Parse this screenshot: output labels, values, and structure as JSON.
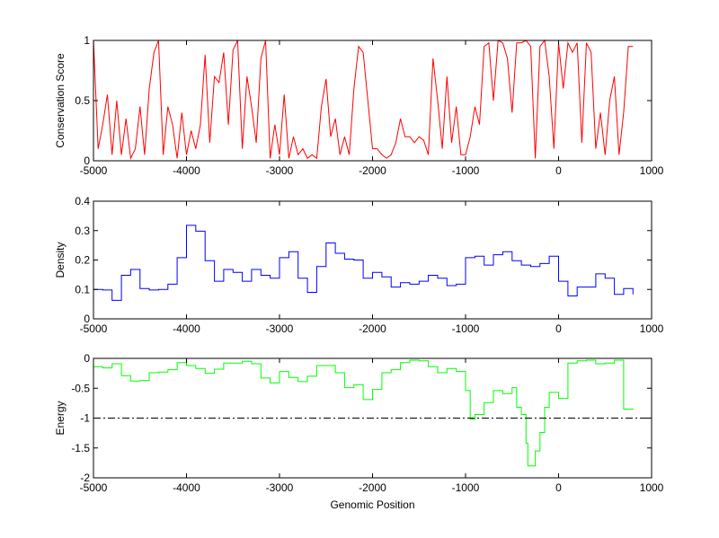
{
  "chart_data": [
    {
      "type": "line",
      "title": "",
      "xlabel": "",
      "ylabel": "Conservation Score",
      "xlim": [
        -5000,
        1000
      ],
      "ylim": [
        0,
        1
      ],
      "xticks": [
        "-5000",
        "-4000",
        "-3000",
        "-2000",
        "-1000",
        "0",
        "1000"
      ],
      "yticks": [
        "0",
        "0.5",
        "1"
      ],
      "ytick_values": [
        0,
        0.5,
        1
      ],
      "color": "#ff0000",
      "step": false,
      "x_start": -5000,
      "x_step": 50,
      "values": [
        1,
        0.1,
        0.3,
        0.55,
        0.05,
        0.5,
        0.05,
        0.35,
        0.02,
        0.1,
        0.45,
        0.05,
        0.6,
        0.9,
        1,
        0.05,
        0.45,
        0.3,
        0.02,
        0.4,
        0.05,
        0.25,
        0.1,
        0.3,
        0.88,
        0.15,
        0.7,
        0.65,
        0.9,
        0.3,
        0.92,
        1,
        0.1,
        0.7,
        0.45,
        0.15,
        0.85,
        1,
        0.02,
        0.3,
        0.05,
        0.55,
        0.02,
        0.2,
        0.05,
        0.1,
        0.02,
        0.05,
        0.02,
        0.45,
        0.68,
        0.2,
        0.35,
        0.05,
        0.2,
        0.05,
        0.6,
        0.95,
        0.9,
        0.5,
        0.1,
        0.1,
        0.05,
        0.02,
        0.05,
        0.15,
        0.35,
        0.2,
        0.2,
        0.15,
        0.2,
        0.17,
        0.05,
        0.85,
        0.5,
        0.1,
        0.7,
        0.15,
        0.45,
        0.05,
        0.05,
        0.2,
        0.45,
        0.3,
        0.95,
        0.98,
        0.5,
        1,
        0.98,
        0.85,
        0.4,
        0.98,
        0.98,
        1,
        0.95,
        0.02,
        0.95,
        1,
        0.7,
        0.1,
        0.98,
        0.6,
        0.98,
        0.9,
        0.98,
        0.15,
        0.98,
        0.9,
        0.1,
        0.4,
        0.05,
        0.5,
        0.7,
        0.05,
        0.4,
        0.95,
        0.95
      ]
    },
    {
      "type": "line",
      "title": "",
      "xlabel": "",
      "ylabel": "Density",
      "xlim": [
        -5000,
        1000
      ],
      "ylim": [
        0,
        0.4
      ],
      "xticks": [
        "-5000",
        "-4000",
        "-3000",
        "-2000",
        "-1000",
        "0",
        "1000"
      ],
      "yticks": [
        "0",
        "0.1",
        "0.2",
        "0.3",
        "0.4"
      ],
      "ytick_values": [
        0,
        0.1,
        0.2,
        0.3,
        0.4
      ],
      "color": "#0000ff",
      "step": true,
      "x_start": -5000,
      "x_step": 100,
      "values": [
        0.1,
        0.098,
        0.063,
        0.148,
        0.168,
        0.103,
        0.098,
        0.1,
        0.118,
        0.208,
        0.318,
        0.298,
        0.198,
        0.128,
        0.168,
        0.158,
        0.128,
        0.168,
        0.148,
        0.138,
        0.208,
        0.228,
        0.138,
        0.09,
        0.178,
        0.258,
        0.223,
        0.203,
        0.2,
        0.138,
        0.158,
        0.143,
        0.108,
        0.123,
        0.118,
        0.128,
        0.148,
        0.138,
        0.113,
        0.118,
        0.208,
        0.213,
        0.183,
        0.218,
        0.228,
        0.198,
        0.183,
        0.178,
        0.188,
        0.213,
        0.128,
        0.078,
        0.108,
        0.108,
        0.153,
        0.138,
        0.083,
        0.103,
        0.083
      ]
    },
    {
      "type": "line",
      "title": "",
      "xlabel": "Genomic Position",
      "ylabel": "Energy",
      "xlim": [
        -5000,
        1000
      ],
      "ylim": [
        -2,
        0
      ],
      "xticks": [
        "-5000",
        "-4000",
        "-3000",
        "-2000",
        "-1000",
        "0",
        "1000"
      ],
      "yticks": [
        "0",
        "-0.5",
        "-1",
        "-1.5",
        "-2"
      ],
      "ytick_values": [
        0,
        -0.5,
        -1,
        -1.5,
        -2
      ],
      "color": "#00ff00",
      "step": true,
      "threshold": -1,
      "x": [
        -5000,
        -4900,
        -4800,
        -4700,
        -4600,
        -4500,
        -4400,
        -4300,
        -4200,
        -4100,
        -4000,
        -3900,
        -3800,
        -3700,
        -3600,
        -3500,
        -3400,
        -3300,
        -3200,
        -3100,
        -3000,
        -2900,
        -2800,
        -2700,
        -2600,
        -2500,
        -2400,
        -2300,
        -2200,
        -2100,
        -2000,
        -1900,
        -1800,
        -1700,
        -1600,
        -1500,
        -1400,
        -1300,
        -1200,
        -1100,
        -1000,
        -950,
        -900,
        -800,
        -700,
        -600,
        -500,
        -450,
        -400,
        -350,
        -330,
        -250,
        -200,
        -150,
        -100,
        0,
        100,
        200,
        300,
        400,
        500,
        600,
        700,
        800
      ],
      "values": [
        -0.14,
        -0.16,
        -0.09,
        -0.29,
        -0.38,
        -0.37,
        -0.24,
        -0.23,
        -0.19,
        -0.07,
        -0.12,
        -0.17,
        -0.25,
        -0.18,
        -0.08,
        -0.08,
        -0.05,
        -0.09,
        -0.33,
        -0.41,
        -0.22,
        -0.32,
        -0.39,
        -0.3,
        -0.12,
        -0.12,
        -0.24,
        -0.49,
        -0.44,
        -0.69,
        -0.52,
        -0.24,
        -0.19,
        -0.07,
        -0.03,
        -0.04,
        -0.14,
        -0.24,
        -0.17,
        -0.22,
        -0.54,
        -1.02,
        -0.94,
        -0.74,
        -0.54,
        -0.59,
        -0.49,
        -0.82,
        -0.94,
        -1.42,
        -1.8,
        -1.55,
        -1.24,
        -0.82,
        -0.57,
        -0.67,
        -0.08,
        -0.04,
        -0.03,
        -0.09,
        -0.08,
        -0.03,
        -0.85,
        -0.84
      ]
    }
  ]
}
